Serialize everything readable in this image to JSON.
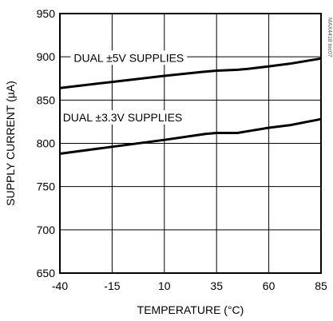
{
  "chart_data": {
    "type": "line",
    "title": "",
    "xlabel": "TEMPERATURE (°C)",
    "ylabel": "SUPPLY CURRENT (µA)",
    "xlim": [
      -40,
      85
    ],
    "ylim": [
      650,
      950
    ],
    "x_ticks": [
      -40,
      -15,
      10,
      35,
      60,
      85
    ],
    "y_ticks": [
      650,
      700,
      750,
      800,
      850,
      900,
      950
    ],
    "grid": true,
    "legend": "none",
    "watermark": "MAX4418 toc07",
    "series": [
      {
        "name": "DUAL ±5V SUPPLIES",
        "x": [
          -40,
          -15,
          10,
          30,
          35,
          45,
          50,
          60,
          70,
          85
        ],
        "y": [
          864,
          871,
          878,
          883,
          884,
          885,
          886,
          889,
          892,
          898
        ],
        "label_at": [
          -7,
          899
        ]
      },
      {
        "name": "DUAL ±3.3V SUPPLIES",
        "x": [
          -40,
          -15,
          10,
          30,
          35,
          45,
          50,
          60,
          70,
          85
        ],
        "y": [
          788,
          796,
          804,
          811,
          812,
          812,
          814,
          818,
          821,
          828
        ],
        "label_at": [
          -10,
          830
        ]
      }
    ]
  }
}
